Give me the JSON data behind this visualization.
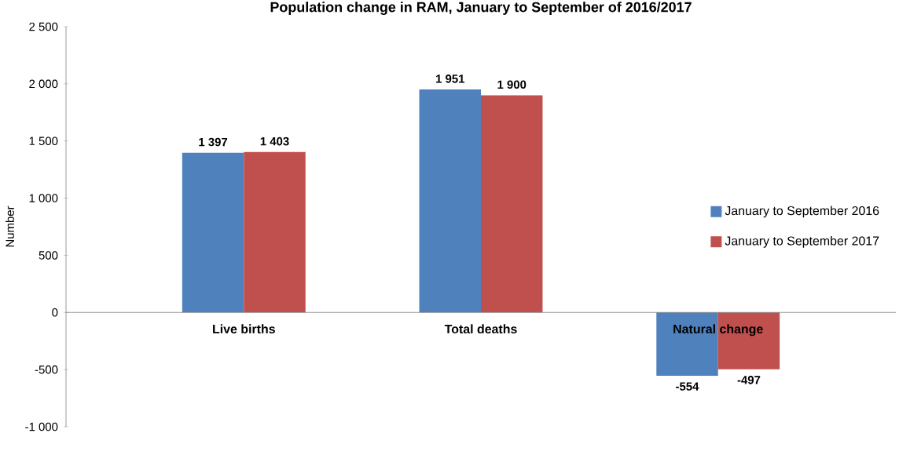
{
  "chart_data": {
    "type": "bar",
    "title": "Population change in RAM, January to September of 2016/2017",
    "ylabel": "Number",
    "categories": [
      "Live births",
      "Total deaths",
      "Natural change"
    ],
    "series": [
      {
        "name": "January to September 2016",
        "color": "#4f81bd",
        "values": [
          1397,
          1951,
          -554
        ],
        "value_labels": [
          "1 397",
          "1 951",
          "-554"
        ]
      },
      {
        "name": "January to September 2017",
        "color": "#c0504d",
        "values": [
          1403,
          1900,
          -497
        ],
        "value_labels": [
          "1 403",
          "1 900",
          "-497"
        ]
      }
    ],
    "ylim": [
      -1000,
      2500
    ],
    "yticks": [
      {
        "value": -1000,
        "label": "-1 000"
      },
      {
        "value": -500,
        "label": "-500"
      },
      {
        "value": 0,
        "label": "0"
      },
      {
        "value": 500,
        "label": "500"
      },
      {
        "value": 1000,
        "label": "1 000"
      },
      {
        "value": 1500,
        "label": "1 500"
      },
      {
        "value": 2000,
        "label": "2 000"
      },
      {
        "value": 2500,
        "label": "2 500"
      }
    ],
    "legend": "right",
    "grid": false
  }
}
